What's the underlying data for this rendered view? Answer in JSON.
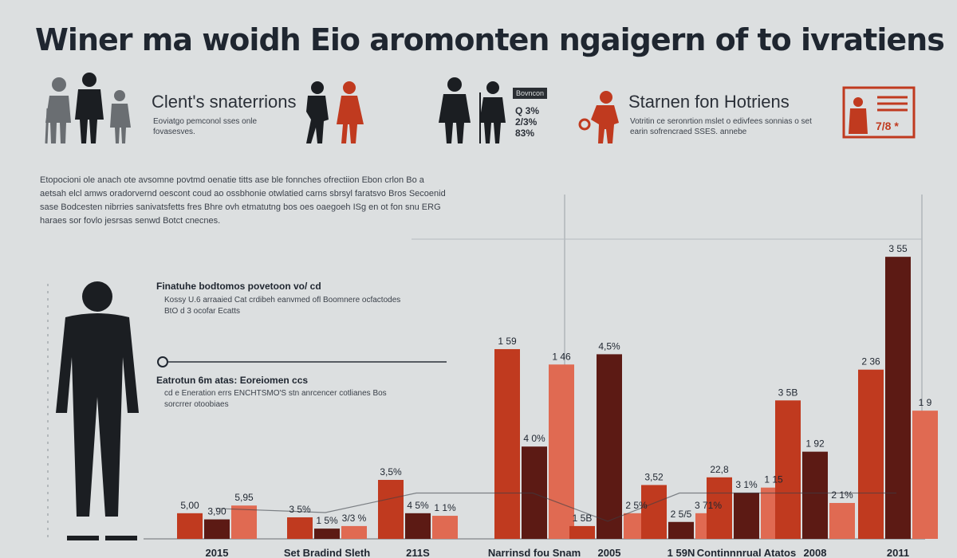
{
  "header": {
    "title": "Winer ma woidh  Eio aromonten ngaigern of to ivratiens"
  },
  "panels": {
    "left": {
      "title": "Clent's snaterrions",
      "desc": "Eoviatgo pemconol sses onle fovasesves."
    },
    "right": {
      "title": "Starnen fon Hotriens",
      "desc": "Votritin ce seronrtion mslet o edivfees sonnias o set earin sofrencraed SSES. annebe",
      "badge_top": "Bovncon",
      "badge_stats": "Q 3% 2/3% 83%",
      "box_value": "7/8 *"
    }
  },
  "intro": "Etopocioni ole anach ote avsomne povtmd oenatie titts ase ble fonnches ofrectiion Ebon crlon Bo a aetsah elcl amws oradorvernd oescont coud ao ossbhonie otwlatied carns sbrsyl faratsvo Bros Secoenid sase Bodcesten nibrries sanivatsfetts fres Bhre ovh etmatutng bos oes oaegoeh ISg en ot fon snu ERG haraes sor fovlo jesrsas senwd Botct cnecnes.",
  "notes": [
    {
      "title": "Finatuhe bodtomos povetoon vo/ cd",
      "body": "Kossy U.6 arraaied Cat crdibeh eanvmed ofl Boomnere ocfactodes BtO d 3 ocofar Ecatts"
    },
    {
      "title": "Eatrotun 6m atas: Eoreiomen ccs",
      "body": "cd e Eneration errs ENCHTSMO'S stn anrcencer cotlianes Bos sorcrrer otoobiaes"
    }
  ],
  "colors": {
    "red": "#c03a1f",
    "dark": "#5c1a14",
    "light": "#e06a52",
    "figure_dark": "#1b1e22",
    "figure_grey": "#6a6e72"
  },
  "icons": [
    "person-silhouette-icon",
    "family-icon",
    "certificate-icon"
  ],
  "chart_data": {
    "type": "bar",
    "categories": [
      "2015",
      "Set Bradind Sleth",
      "211S",
      "Narrinsd fou Snam",
      "2005",
      "1 59N",
      "Continnnrual Atatos",
      "2008",
      "2011"
    ],
    "series": [
      {
        "name": "",
        "color": "red",
        "values": [
          5.0,
          4.2,
          11.5,
          37.0,
          2.5,
          10.5,
          12.0,
          27.0,
          33.0
        ]
      },
      {
        "name": "",
        "color": "dark",
        "values": [
          3.8,
          2.0,
          5.0,
          18.0,
          36.0,
          3.3,
          9.0,
          17.0,
          55.0
        ]
      },
      {
        "name": "",
        "color": "light",
        "values": [
          6.5,
          2.5,
          4.5,
          34.0,
          5.0,
          5.0,
          10.0,
          7.0,
          25.0
        ]
      }
    ],
    "bar_labels": [
      [
        "5,00",
        "3,90",
        "5,95"
      ],
      [
        "3 5%",
        "1 5%",
        "3/3 %"
      ],
      [
        "3,5%",
        "4 5%",
        "1 1%"
      ],
      [
        "1 59",
        "4 0%",
        "1 46"
      ],
      [
        "1 5B",
        "4,5%",
        "2 5%"
      ],
      [
        "3,52",
        "2 5/5",
        "3 71%"
      ],
      [
        "22,8",
        "3 1%",
        "1 15"
      ],
      [
        "3 5B",
        "1 92",
        "2 1%"
      ],
      [
        "2 36",
        "3 55",
        "1 9"
      ]
    ],
    "ylim": [
      0,
      60
    ],
    "grid": true,
    "legend": "none"
  }
}
